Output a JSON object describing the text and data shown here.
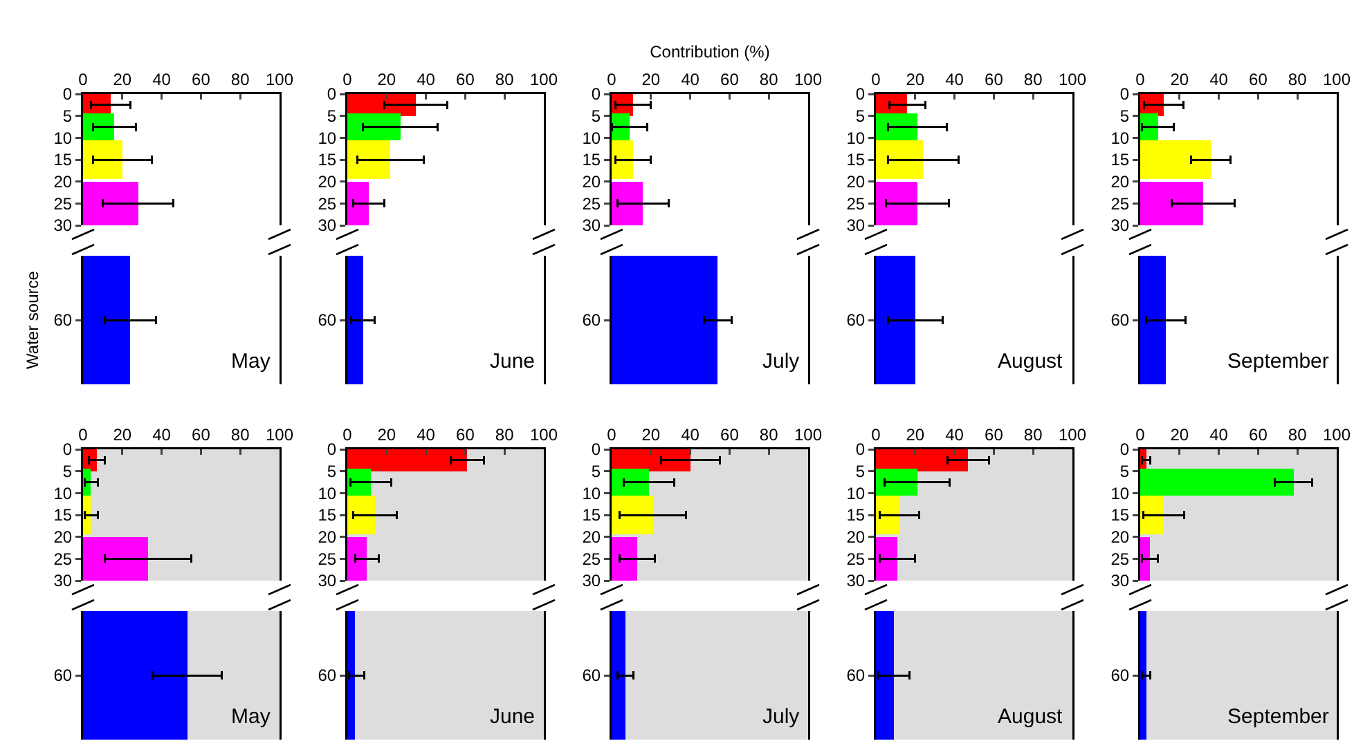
{
  "chart_data": [
    {
      "type": "bar",
      "orientation": "horizontal",
      "x": [
        2.5,
        7.5,
        15,
        25
      ],
      "values": [
        14,
        16,
        20,
        28
      ],
      "errors": [
        10,
        11,
        15,
        18
      ],
      "colors": [
        "#ff0000",
        "#00ff00",
        "#ffff00",
        "#ff00ff"
      ],
      "xlim": [
        0,
        100
      ],
      "xticks": [
        0,
        20,
        40,
        60,
        80,
        100
      ],
      "ylim": [
        30,
        0
      ],
      "yticks": [
        0,
        5,
        10,
        15,
        20,
        25,
        30
      ]
    },
    {
      "type": "bar",
      "orientation": "horizontal",
      "categories": [
        "60"
      ],
      "values": [
        24
      ],
      "errors": [
        13
      ],
      "color": "#0000ff",
      "xlim": [
        0,
        100
      ],
      "tick_labels": "y",
      "ylabel": "Water source",
      "annotations": [
        "May"
      ]
    },
    {
      "type": "bar",
      "orientation": "horizontal",
      "x": [
        2.5,
        7.5,
        15,
        25
      ],
      "values": [
        35,
        27,
        22,
        11
      ],
      "errors": [
        16,
        19,
        17,
        8
      ],
      "colors": [
        "#ff0000",
        "#00ff00",
        "#ffff00",
        "#ff00ff"
      ],
      "xlim": [
        0,
        100
      ],
      "xticks": [
        0,
        20,
        40,
        60,
        80,
        100
      ],
      "ylim": [
        30,
        0
      ],
      "yticks": [
        0,
        5,
        10,
        15,
        20,
        25,
        30
      ]
    },
    {
      "type": "bar",
      "orientation": "horizontal",
      "categories": [
        "60"
      ],
      "values": [
        8
      ],
      "errors": [
        6
      ],
      "color": "#0000ff",
      "xlim": [
        0,
        100
      ],
      "tick_labels": "y",
      "annotations": [
        "June"
      ]
    },
    {
      "type": "bar",
      "orientation": "horizontal",
      "x": [
        2.5,
        7.5,
        15,
        25
      ],
      "values": [
        11,
        9,
        11,
        16
      ],
      "errors": [
        9,
        9,
        9,
        13
      ],
      "colors": [
        "#ff0000",
        "#00ff00",
        "#ffff00",
        "#ff00ff"
      ],
      "xlim": [
        0,
        100
      ],
      "xticks": [
        0,
        20,
        40,
        60,
        80,
        100
      ],
      "ylim": [
        30,
        0
      ],
      "yticks": [
        0,
        5,
        10,
        15,
        20,
        25,
        30
      ],
      "xlabel": "Contribution (%)"
    },
    {
      "type": "bar",
      "orientation": "horizontal",
      "categories": [
        "60"
      ],
      "values": [
        54
      ],
      "errors": [
        7
      ],
      "color": "#0000ff",
      "xlim": [
        0,
        100
      ],
      "tick_labels": "y",
      "annotations": [
        "July"
      ]
    },
    {
      "type": "bar",
      "orientation": "horizontal",
      "x": [
        2.5,
        7.5,
        15,
        25
      ],
      "values": [
        16,
        21,
        24,
        21
      ],
      "errors": [
        9,
        15,
        18,
        16
      ],
      "colors": [
        "#ff0000",
        "#00ff00",
        "#ffff00",
        "#ff00ff"
      ],
      "xlim": [
        0,
        100
      ],
      "xticks": [
        0,
        20,
        40,
        60,
        80,
        100
      ],
      "ylim": [
        30,
        0
      ],
      "yticks": [
        0,
        5,
        10,
        15,
        20,
        25,
        30
      ]
    },
    {
      "type": "bar",
      "orientation": "horizontal",
      "categories": [
        "60"
      ],
      "values": [
        20
      ],
      "errors": [
        14
      ],
      "color": "#0000ff",
      "xlim": [
        0,
        100
      ],
      "tick_labels": "y",
      "annotations": [
        "August"
      ]
    },
    {
      "type": "bar",
      "orientation": "horizontal",
      "x": [
        2.5,
        7.5,
        15,
        25
      ],
      "values": [
        12,
        9,
        36,
        32
      ],
      "errors": [
        10,
        8,
        10,
        16
      ],
      "colors": [
        "#ff0000",
        "#00ff00",
        "#ffff00",
        "#ff00ff"
      ],
      "xlim": [
        0,
        100
      ],
      "xticks": [
        0,
        20,
        40,
        60,
        80,
        100
      ],
      "ylim": [
        30,
        0
      ],
      "yticks": [
        0,
        5,
        10,
        15,
        20,
        25,
        30
      ]
    },
    {
      "type": "bar",
      "orientation": "horizontal",
      "categories": [
        "60"
      ],
      "values": [
        13
      ],
      "errors": [
        10
      ],
      "color": "#0000ff",
      "xlim": [
        0,
        100
      ],
      "tick_labels": "y",
      "annotations": [
        "September"
      ]
    },
    {
      "type": "bar",
      "orientation": "horizontal",
      "x": [
        2.5,
        7.5,
        15,
        25
      ],
      "values": [
        7,
        4,
        4,
        33
      ],
      "errors": [
        4,
        [
          1,
          7.5
        ],
        [
          1,
          7.5
        ],
        22
      ],
      "colors": [
        "#ff0000",
        "#00ff00",
        "#ffff00",
        "#ff00ff"
      ],
      "xlim": [
        0,
        100
      ],
      "xticks": [
        0,
        20,
        40,
        60,
        80,
        100
      ],
      "ylim": [
        30,
        0
      ],
      "yticks": [
        0,
        5,
        10,
        15,
        20,
        25,
        30
      ]
    },
    {
      "type": "bar",
      "orientation": "horizontal",
      "categories": [
        "60"
      ],
      "values": [
        53
      ],
      "errors": [
        17.5
      ],
      "color": "#0000ff",
      "xlim": [
        0,
        100
      ],
      "tick_labels": "y",
      "annotations": [
        "May"
      ]
    },
    {
      "type": "bar",
      "orientation": "horizontal",
      "x": [
        2.5,
        7.5,
        15,
        25
      ],
      "values": [
        61,
        12,
        14,
        10
      ],
      "errors": [
        8.5,
        10.5,
        11,
        6
      ],
      "colors": [
        "#ff0000",
        "#00ff00",
        "#ffff00",
        "#ff00ff"
      ],
      "xlim": [
        0,
        100
      ],
      "xticks": [
        0,
        20,
        40,
        60,
        80,
        100
      ],
      "ylim": [
        30,
        0
      ],
      "yticks": [
        0,
        5,
        10,
        15,
        20,
        25,
        30
      ]
    },
    {
      "type": "bar",
      "orientation": "horizontal",
      "categories": [
        "60"
      ],
      "values": [
        4
      ],
      "errors": [
        [
          1,
          8.5
        ]
      ],
      "color": "#0000ff",
      "xlim": [
        0,
        100
      ],
      "tick_labels": "y",
      "annotations": [
        "June"
      ]
    },
    {
      "type": "bar",
      "orientation": "horizontal",
      "x": [
        2.5,
        7.5,
        15,
        25
      ],
      "values": [
        40,
        19,
        21,
        13
      ],
      "errors": [
        15,
        13,
        17,
        9
      ],
      "colors": [
        "#ff0000",
        "#00ff00",
        "#ffff00",
        "#ff00ff"
      ],
      "xlim": [
        0,
        100
      ],
      "xticks": [
        0,
        20,
        40,
        60,
        80,
        100
      ],
      "ylim": [
        30,
        0
      ],
      "yticks": [
        0,
        5,
        10,
        15,
        20,
        25,
        30
      ]
    },
    {
      "type": "bar",
      "orientation": "horizontal",
      "categories": [
        "60"
      ],
      "values": [
        7
      ],
      "errors": [
        4
      ],
      "color": "#0000ff",
      "xlim": [
        0,
        100
      ],
      "tick_labels": "y",
      "annotations": [
        "July"
      ]
    },
    {
      "type": "bar",
      "orientation": "horizontal",
      "x": [
        2.5,
        7.5,
        15,
        25
      ],
      "values": [
        47,
        21,
        12,
        11
      ],
      "errors": [
        10.5,
        16.5,
        10,
        9
      ],
      "colors": [
        "#ff0000",
        "#00ff00",
        "#ffff00",
        "#ff00ff"
      ],
      "xlim": [
        0,
        100
      ],
      "xticks": [
        0,
        20,
        40,
        60,
        80,
        100
      ],
      "ylim": [
        30,
        0
      ],
      "yticks": [
        0,
        5,
        10,
        15,
        20,
        25,
        30
      ]
    },
    {
      "type": "bar",
      "orientation": "horizontal",
      "categories": [
        "60"
      ],
      "values": [
        9
      ],
      "errors": [
        8
      ],
      "color": "#0000ff",
      "xlim": [
        0,
        100
      ],
      "tick_labels": "y",
      "annotations": [
        "August"
      ]
    },
    {
      "type": "bar",
      "orientation": "horizontal",
      "x": [
        2.5,
        7.5,
        15,
        25
      ],
      "values": [
        3,
        78,
        12,
        5
      ],
      "errors": [
        2,
        9.5,
        10.5,
        4
      ],
      "colors": [
        "#ff0000",
        "#00ff00",
        "#ffff00",
        "#ff00ff"
      ],
      "xlim": [
        0,
        100
      ],
      "xticks": [
        0,
        20,
        40,
        60,
        80,
        100
      ],
      "ylim": [
        30,
        0
      ],
      "yticks": [
        0,
        5,
        10,
        15,
        20,
        25,
        30
      ]
    },
    {
      "type": "bar",
      "orientation": "horizontal",
      "categories": [
        "60"
      ],
      "values": [
        3
      ],
      "errors": [
        2
      ],
      "color": "#0000ff",
      "xlim": [
        0,
        100
      ],
      "tick_labels": "y",
      "annotations": [
        "September"
      ]
    }
  ]
}
